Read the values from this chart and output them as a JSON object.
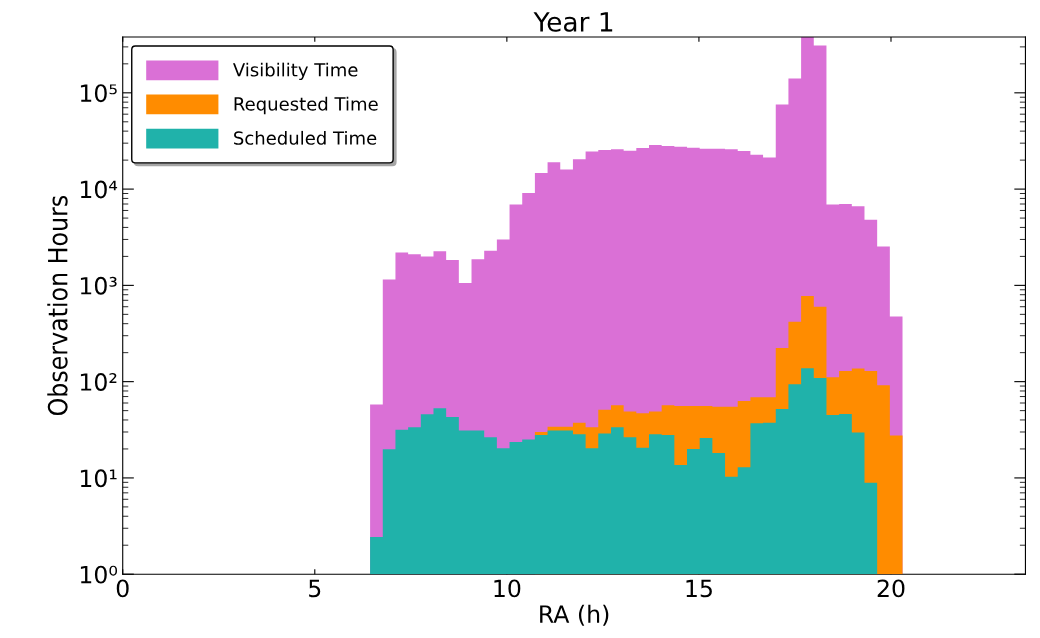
{
  "chart_data": {
    "type": "histogram",
    "title": "Year 1",
    "xlabel": "RA (h)",
    "ylabel": "Observation Hours",
    "bins": [
      6.44,
      6.77,
      7.1,
      7.43,
      7.76,
      8.09,
      8.42,
      8.75,
      9.08,
      9.41,
      9.74,
      10.07,
      10.4,
      10.73,
      11.06,
      11.39,
      11.72,
      12.05,
      12.38,
      12.71,
      13.04,
      13.37,
      13.7,
      14.03,
      14.36,
      14.69,
      15.02,
      15.35,
      15.68,
      16.01,
      16.34,
      16.67,
      17.0,
      17.33,
      17.66,
      17.99,
      18.32,
      18.65,
      18.98,
      19.31,
      19.64,
      19.97,
      20.3
    ],
    "series": [
      {
        "name": "Visibility Time",
        "color": "#da70d6",
        "values": [
          58,
          1150,
          2200,
          2100,
          2000,
          2260,
          1830,
          1060,
          1870,
          2290,
          3000,
          6900,
          9100,
          14700,
          19000,
          16000,
          20400,
          24600,
          25500,
          26000,
          25000,
          26800,
          28700,
          28000,
          27600,
          26900,
          26300,
          26300,
          25900,
          24900,
          22800,
          21300,
          75500,
          141000,
          380000,
          310000,
          6900,
          7000,
          6650,
          4800,
          2530,
          475
        ]
      },
      {
        "name": "Requested Time",
        "color": "#ff8c00",
        "values": [
          null,
          null,
          null,
          null,
          null,
          null,
          null,
          null,
          null,
          null,
          null,
          null,
          null,
          30,
          34,
          34,
          37.5,
          33.6,
          51,
          57,
          49,
          47,
          49,
          57,
          56,
          56,
          56,
          55,
          55,
          63,
          69,
          69,
          223,
          420,
          776,
          600,
          111,
          129,
          137,
          129,
          92,
          27.6
        ]
      },
      {
        "name": "Scheduled Time",
        "color": "#20b2aa",
        "values": [
          2.43,
          19.8,
          31.6,
          33.6,
          45.8,
          53,
          43,
          31,
          31,
          26.5,
          20.3,
          23.6,
          25,
          27.9,
          31,
          31,
          28.4,
          20.3,
          28.9,
          33.6,
          26.5,
          20.6,
          28.4,
          27.9,
          13.6,
          20,
          26,
          18.2,
          10.3,
          12.9,
          37,
          37.5,
          52,
          94,
          138,
          109,
          45,
          46,
          29.6,
          8.9,
          null,
          null
        ]
      }
    ],
    "log": "y",
    "xlim": [
      0,
      23.5
    ],
    "xticks": [
      0,
      5,
      10,
      15,
      20
    ],
    "ylim": [
      1,
      380000
    ],
    "yticks": [
      {
        "value": 1,
        "label": "10⁰"
      },
      {
        "value": 10,
        "label": "10¹"
      },
      {
        "value": 100,
        "label": "10²"
      },
      {
        "value": 1000,
        "label": "10³"
      },
      {
        "value": 10000,
        "label": "10⁴"
      },
      {
        "value": 100000,
        "label": "10⁵"
      }
    ],
    "grid": false,
    "legend": "top left"
  }
}
